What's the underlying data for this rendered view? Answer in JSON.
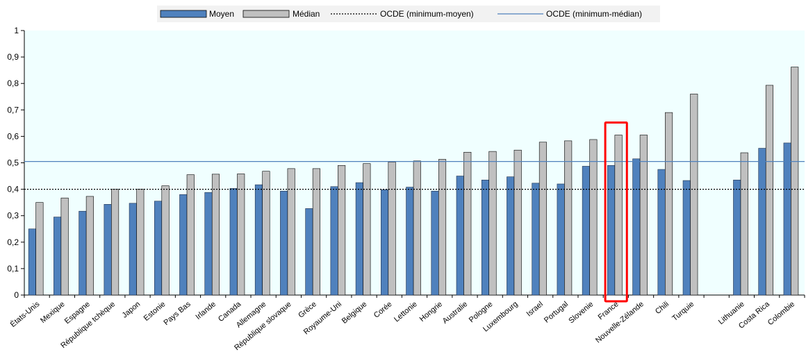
{
  "chart_data": {
    "type": "bar",
    "categories": [
      "États-Unis",
      "Mexique",
      "Espagne",
      "République tchèque",
      "Japon",
      "Estonie",
      "Pays Bas",
      "Irlande",
      "Canada",
      "Allemagne",
      "République slovaque",
      "Grèce",
      "Royaume-Uni",
      "Belgique",
      "Corée",
      "Lettonie",
      "Hongrie",
      "Australie",
      "Pologne",
      "Luxembourg",
      "Israel",
      "Portugal",
      "Slovenie",
      "France",
      "Nouvelle-Zélande",
      "Chili",
      "Turquie",
      "",
      "Lithuanie",
      "Costa Rica",
      "Colombie"
    ],
    "series": [
      {
        "name": "Moyen",
        "color": "#4f81bd",
        "values": [
          0.25,
          0.295,
          0.317,
          0.343,
          0.347,
          0.355,
          0.38,
          0.388,
          0.403,
          0.417,
          0.393,
          0.327,
          0.41,
          0.425,
          0.398,
          0.408,
          0.393,
          0.45,
          0.435,
          0.447,
          0.423,
          0.42,
          0.487,
          0.49,
          0.515,
          0.475,
          0.433,
          null,
          0.435,
          0.555,
          0.575
        ]
      },
      {
        "name": "Médian",
        "color": "#c0c0c0",
        "values": [
          0.35,
          0.367,
          0.373,
          0.4,
          0.4,
          0.413,
          0.455,
          0.457,
          0.458,
          0.468,
          0.478,
          0.478,
          0.49,
          0.497,
          0.503,
          0.507,
          0.513,
          0.54,
          0.543,
          0.548,
          0.578,
          0.583,
          0.588,
          0.605,
          0.605,
          0.69,
          0.76,
          null,
          0.538,
          0.793,
          0.862
        ]
      }
    ],
    "reference_lines": [
      {
        "name": "OCDE (minimum-moyen)",
        "value": 0.4,
        "style": "dotted",
        "color": "#000000"
      },
      {
        "name": "OCDE (minimum-médian)",
        "value": 0.505,
        "style": "solid",
        "color": "#4f81bd"
      }
    ],
    "y_ticks": [
      "0",
      "0,1",
      "0,2",
      "0,3",
      "0,4",
      "0,5",
      "0,6",
      "0,7",
      "0,8",
      "0,9",
      "1"
    ],
    "ylim": [
      0,
      1
    ],
    "highlight_category": "France",
    "highlight_color": "#ff0000",
    "legend_position": "top-center",
    "grid": false,
    "plot_background": "#f0ffff",
    "title": "",
    "xlabel": "",
    "ylabel": ""
  }
}
